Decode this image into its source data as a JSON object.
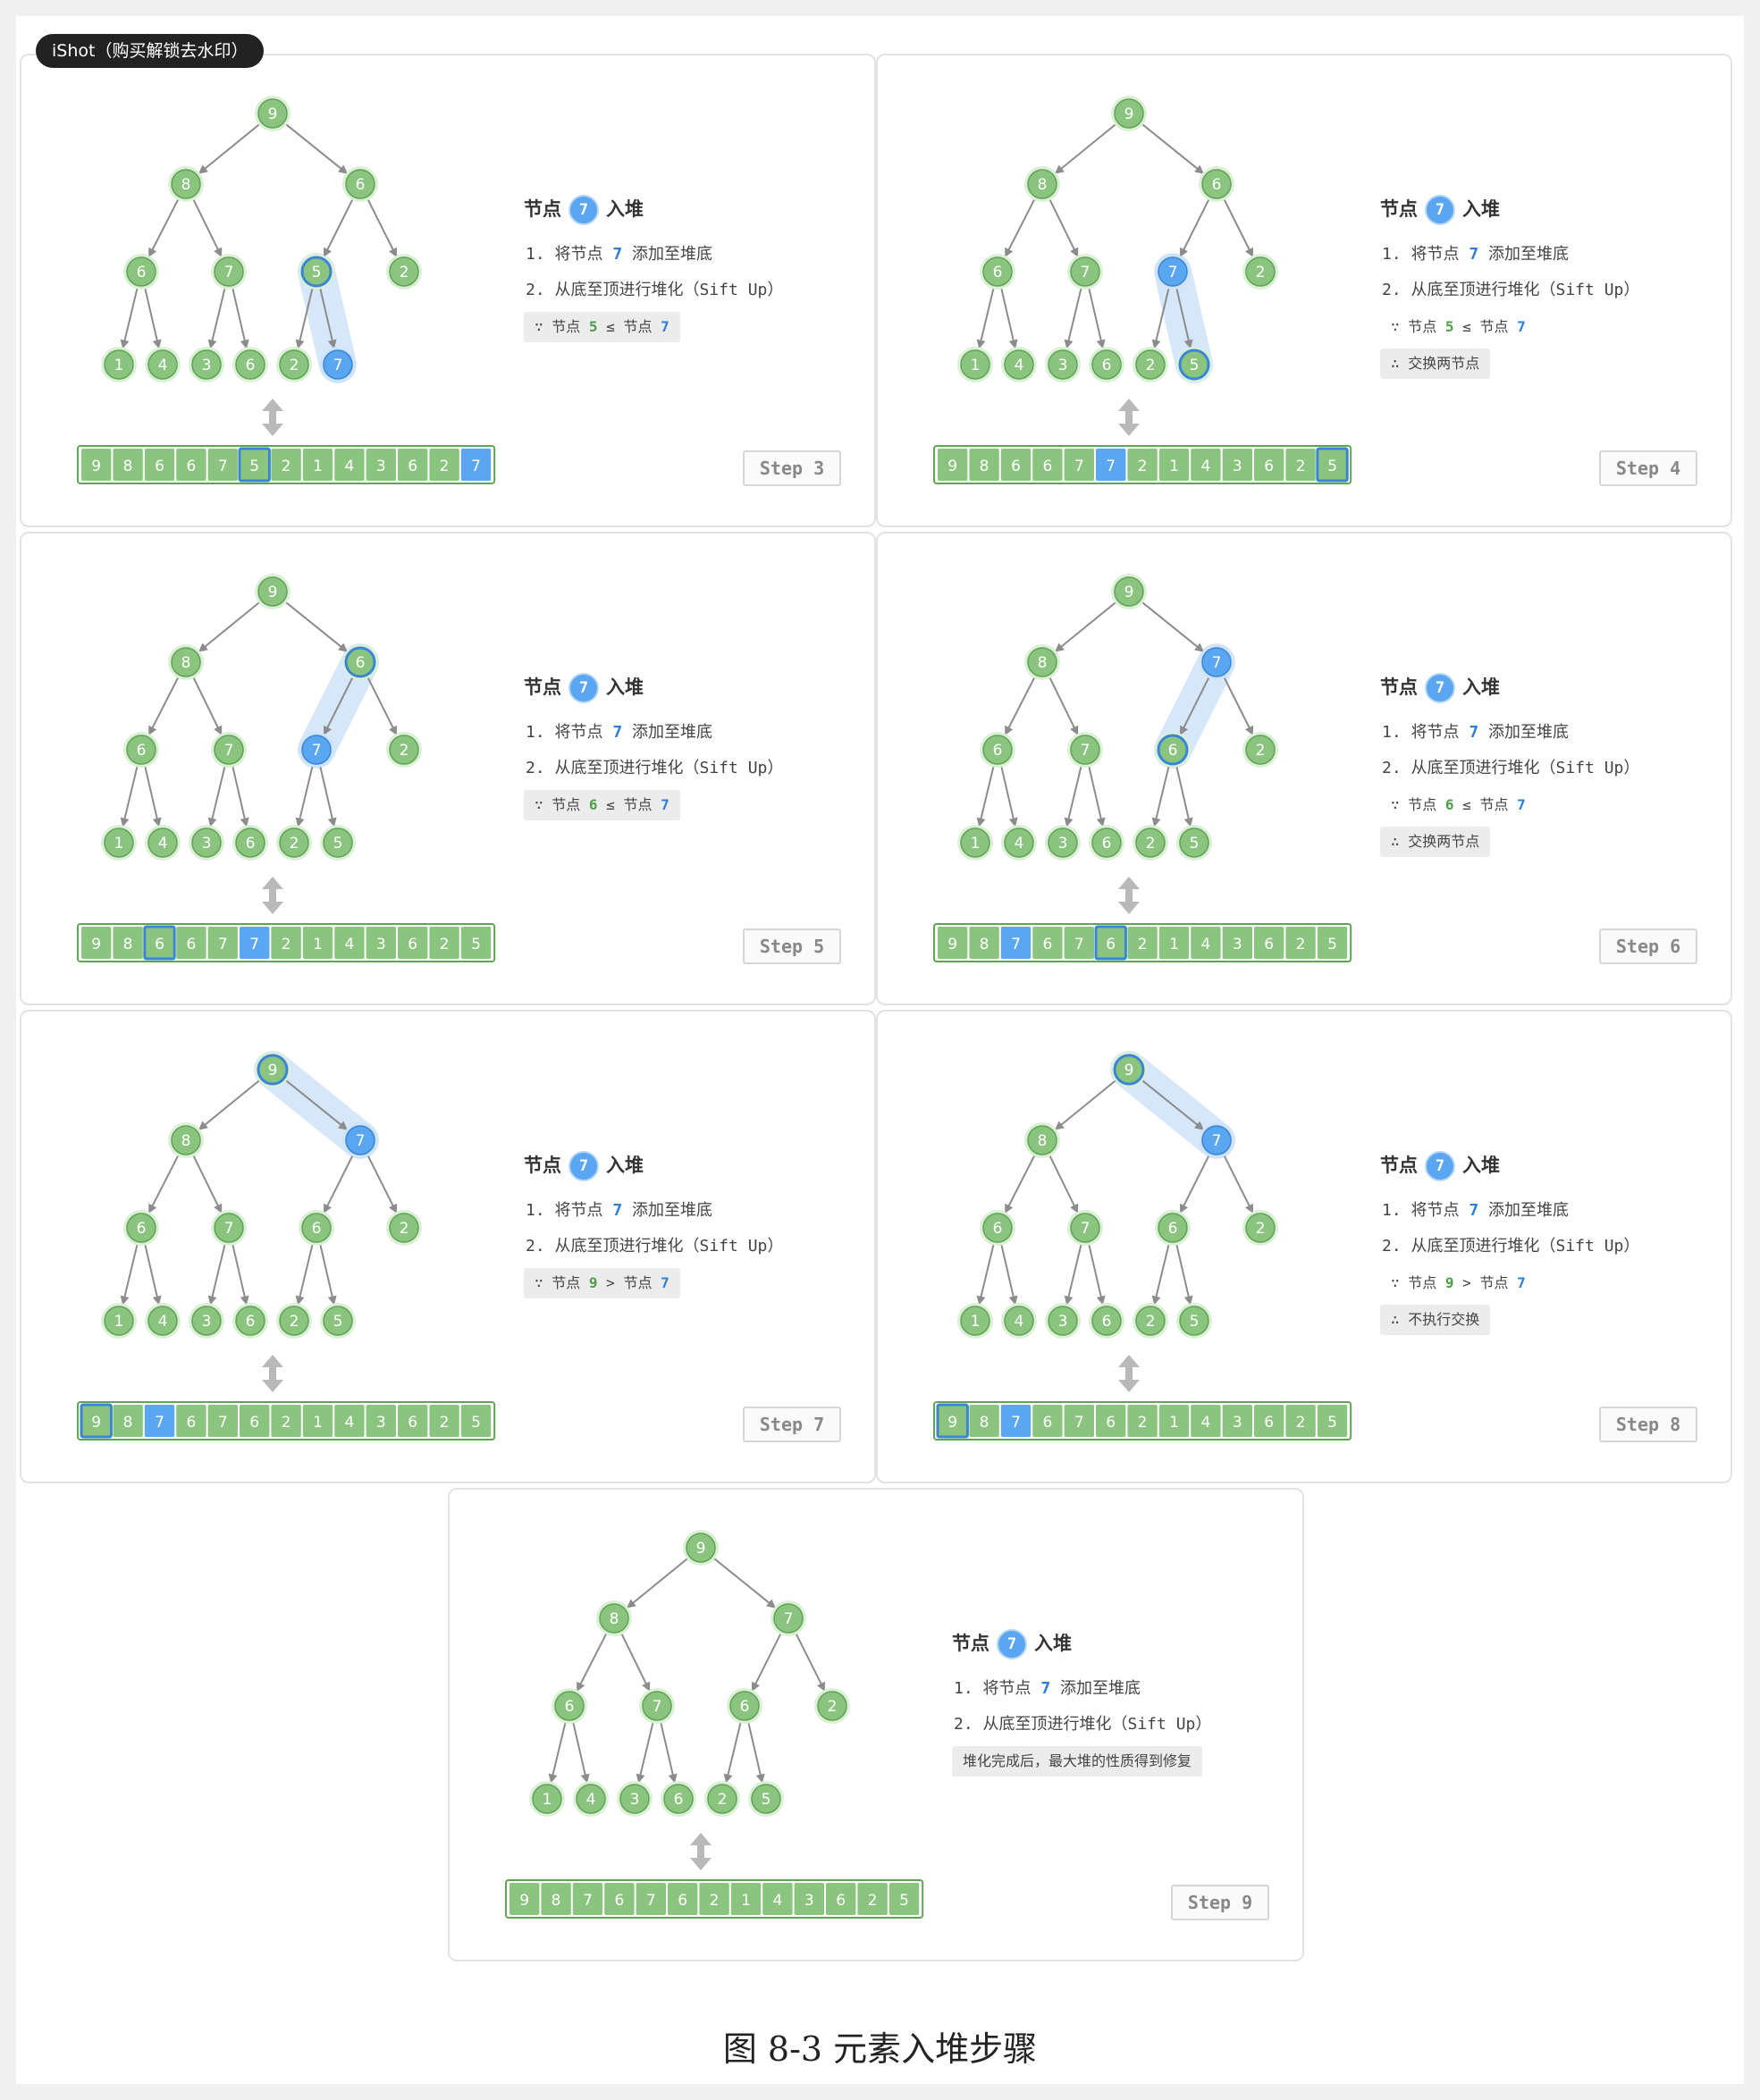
{
  "watermark": "iShot（购买解锁去水印）",
  "caption": "图 8-3   元素入堆步骤",
  "title_prefix": "节点",
  "title_suffix": "入堆",
  "new_node": "7",
  "line1": {
    "pre": "1. 将节点 ",
    "val": "7",
    "post": " 添加至堆底"
  },
  "line2": "2. 从底至顶进行堆化（Sift Up）",
  "colors": {
    "green": "#8bc47f",
    "green_border": "#5ea453",
    "blue": "#5aa6f0",
    "blue_border": "#3a85d4",
    "edge": "#8c8c8c"
  },
  "steps": [
    {
      "step": "Step 3",
      "tree": [
        "9",
        "8",
        "6",
        "6",
        "7",
        "5",
        "2",
        "1",
        "4",
        "3",
        "6",
        "2",
        "7"
      ],
      "array": [
        "9",
        "8",
        "6",
        "6",
        "7",
        "5",
        "2",
        "1",
        "4",
        "3",
        "6",
        "2",
        "7"
      ],
      "blue": [
        12
      ],
      "outlined": [
        5
      ],
      "cmp": {
        "mark": "∵",
        "pre": " 节点 ",
        "a": "5",
        "op": " ≤ ",
        "mid": "节点 ",
        "b": "7"
      },
      "cmp_style": "box",
      "result": null
    },
    {
      "step": "Step 4",
      "tree": [
        "9",
        "8",
        "6",
        "6",
        "7",
        "7",
        "2",
        "1",
        "4",
        "3",
        "6",
        "2",
        "5"
      ],
      "array": [
        "9",
        "8",
        "6",
        "6",
        "7",
        "7",
        "2",
        "1",
        "4",
        "3",
        "6",
        "2",
        "5"
      ],
      "blue": [
        5
      ],
      "outlined": [
        12
      ],
      "cmp": {
        "mark": "∵",
        "pre": " 节点 ",
        "a": "5",
        "op": " ≤ ",
        "mid": "节点 ",
        "b": "7"
      },
      "cmp_style": "plain",
      "result": "∴ 交换两节点"
    },
    {
      "step": "Step 5",
      "tree": [
        "9",
        "8",
        "6",
        "6",
        "7",
        "7",
        "2",
        "1",
        "4",
        "3",
        "6",
        "2",
        "5"
      ],
      "array": [
        "9",
        "8",
        "6",
        "6",
        "7",
        "7",
        "2",
        "1",
        "4",
        "3",
        "6",
        "2",
        "5"
      ],
      "blue": [
        5
      ],
      "outlined": [
        2
      ],
      "cmp": {
        "mark": "∵",
        "pre": " 节点 ",
        "a": "6",
        "op": " ≤ ",
        "mid": "节点 ",
        "b": "7"
      },
      "cmp_style": "box",
      "result": null
    },
    {
      "step": "Step 6",
      "tree": [
        "9",
        "8",
        "7",
        "6",
        "7",
        "6",
        "2",
        "1",
        "4",
        "3",
        "6",
        "2",
        "5"
      ],
      "array": [
        "9",
        "8",
        "7",
        "6",
        "7",
        "6",
        "2",
        "1",
        "4",
        "3",
        "6",
        "2",
        "5"
      ],
      "blue": [
        2
      ],
      "outlined": [
        5
      ],
      "cmp": {
        "mark": "∵",
        "pre": " 节点 ",
        "a": "6",
        "op": " ≤ ",
        "mid": "节点 ",
        "b": "7"
      },
      "cmp_style": "plain",
      "result": "∴ 交换两节点"
    },
    {
      "step": "Step 7",
      "tree": [
        "9",
        "8",
        "7",
        "6",
        "7",
        "6",
        "2",
        "1",
        "4",
        "3",
        "6",
        "2",
        "5"
      ],
      "array": [
        "9",
        "8",
        "7",
        "6",
        "7",
        "6",
        "2",
        "1",
        "4",
        "3",
        "6",
        "2",
        "5"
      ],
      "blue": [
        2
      ],
      "outlined": [
        0
      ],
      "cmp": {
        "mark": "∵",
        "pre": " 节点 ",
        "a": "9",
        "op": " > ",
        "mid": "节点 ",
        "b": "7"
      },
      "cmp_style": "box",
      "result": null
    },
    {
      "step": "Step 8",
      "tree": [
        "9",
        "8",
        "7",
        "6",
        "7",
        "6",
        "2",
        "1",
        "4",
        "3",
        "6",
        "2",
        "5"
      ],
      "array": [
        "9",
        "8",
        "7",
        "6",
        "7",
        "6",
        "2",
        "1",
        "4",
        "3",
        "6",
        "2",
        "5"
      ],
      "blue": [
        2
      ],
      "outlined": [
        0
      ],
      "cmp": {
        "mark": "∵",
        "pre": " 节点 ",
        "a": "9",
        "op": " > ",
        "mid": "节点 ",
        "b": "7"
      },
      "cmp_style": "plain",
      "result": "∴ 不执行交换"
    },
    {
      "step": "Step 9",
      "tree": [
        "9",
        "8",
        "7",
        "6",
        "7",
        "6",
        "2",
        "1",
        "4",
        "3",
        "6",
        "2",
        "5"
      ],
      "array": [
        "9",
        "8",
        "7",
        "6",
        "7",
        "6",
        "2",
        "1",
        "4",
        "3",
        "6",
        "2",
        "5"
      ],
      "blue": [],
      "outlined": [],
      "cmp": null,
      "cmp_style": "none",
      "result": "堆化完成后，最大堆的性质得到修复"
    }
  ]
}
